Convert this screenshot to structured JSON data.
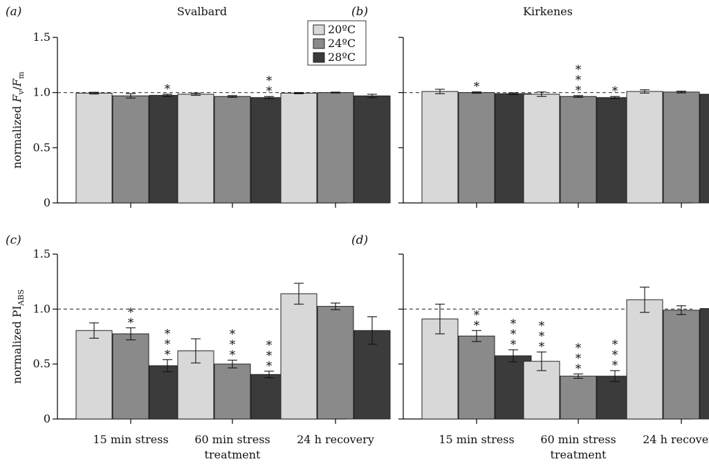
{
  "colors": {
    "20": "#d8d8d8",
    "24": "#8a8a8a",
    "28": "#3b3b3b",
    "axis": "#000000",
    "refline": "#333333"
  },
  "chart_data": {
    "type": "bar",
    "legend": {
      "placement": "top-right of panel (a)",
      "entries": [
        "20ºC",
        "24ºC",
        "28ºC"
      ]
    },
    "categories": [
      "15 min stress",
      "60 min stress",
      "24 h recovery"
    ],
    "xlabel": "treatment",
    "reference_line": 1.0,
    "panels": [
      {
        "label": "(a)",
        "title": "Svalbard",
        "ylabel": "normalized Fv/Fm",
        "ylim": [
          0,
          1.5
        ],
        "yticks": [
          "0",
          "0.5",
          "1.0",
          "1.5"
        ],
        "series": [
          {
            "name": "20ºC",
            "values": [
              0.995,
              0.985,
              0.995
            ],
            "errors": [
              0.008,
              0.01,
              0.006
            ]
          },
          {
            "name": "24ºC",
            "values": [
              0.97,
              0.965,
              1.0
            ],
            "errors": [
              0.02,
              0.008,
              0.004
            ]
          },
          {
            "name": "28ºC",
            "values": [
              0.975,
              0.955,
              0.97
            ],
            "errors": [
              0.01,
              0.01,
              0.015
            ]
          }
        ],
        "stars": [
          [
            "",
            "",
            ""
          ],
          [
            "",
            "",
            ""
          ],
          [
            "*",
            "**",
            ""
          ]
        ]
      },
      {
        "label": "(b)",
        "title": "Kirkenes",
        "ylabel": "",
        "ylim": [
          0,
          1.5
        ],
        "yticks": [
          "0",
          "0.5",
          "1.0",
          "1.5"
        ],
        "series": [
          {
            "name": "20ºC",
            "values": [
              1.01,
              0.985,
              1.01
            ],
            "errors": [
              0.02,
              0.02,
              0.015
            ]
          },
          {
            "name": "24ºC",
            "values": [
              1.0,
              0.965,
              1.005
            ],
            "errors": [
              0.006,
              0.008,
              0.008
            ]
          },
          {
            "name": "28ºC",
            "values": [
              0.99,
              0.955,
              0.985
            ],
            "errors": [
              0.008,
              0.01,
              0.03
            ]
          }
        ],
        "stars": [
          [
            "",
            "",
            ""
          ],
          [
            "*",
            "***",
            ""
          ],
          [
            "",
            "*",
            ""
          ]
        ]
      },
      {
        "label": "(c)",
        "title": "",
        "ylabel": "normalized PIABS",
        "ylim": [
          0,
          1.5
        ],
        "yticks": [
          "0",
          "0.5",
          "1.0",
          "1.5"
        ],
        "series": [
          {
            "name": "20ºC",
            "values": [
              0.805,
              0.62,
              1.14
            ],
            "errors": [
              0.07,
              0.11,
              0.095
            ]
          },
          {
            "name": "24ºC",
            "values": [
              0.775,
              0.5,
              1.025
            ],
            "errors": [
              0.055,
              0.035,
              0.03
            ]
          },
          {
            "name": "28ºC",
            "values": [
              0.485,
              0.405,
              0.805
            ],
            "errors": [
              0.055,
              0.03,
              0.125
            ]
          }
        ],
        "stars": [
          [
            "",
            "",
            ""
          ],
          [
            "**",
            "***",
            ""
          ],
          [
            "***",
            "***",
            ""
          ]
        ]
      },
      {
        "label": "(d)",
        "title": "",
        "ylabel": "",
        "ylim": [
          0,
          1.5
        ],
        "yticks": [
          "0",
          "0.5",
          "1.0",
          "1.5"
        ],
        "series": [
          {
            "name": "20ºC",
            "values": [
              0.91,
              0.525,
              1.085
            ],
            "errors": [
              0.135,
              0.085,
              0.115
            ]
          },
          {
            "name": "24ºC",
            "values": [
              0.755,
              0.39,
              0.99
            ],
            "errors": [
              0.05,
              0.02,
              0.04
            ]
          },
          {
            "name": "28ºC",
            "values": [
              0.575,
              0.39,
              1.005
            ],
            "errors": [
              0.055,
              0.05,
              0.155
            ]
          }
        ],
        "stars": [
          [
            "",
            "***",
            ""
          ],
          [
            "**",
            "***",
            ""
          ],
          [
            "***",
            "***",
            ""
          ]
        ]
      }
    ],
    "xlabels": [
      "15 min stress",
      "60 min stress",
      "24 h recovery"
    ],
    "xsublabel": "treatment"
  }
}
